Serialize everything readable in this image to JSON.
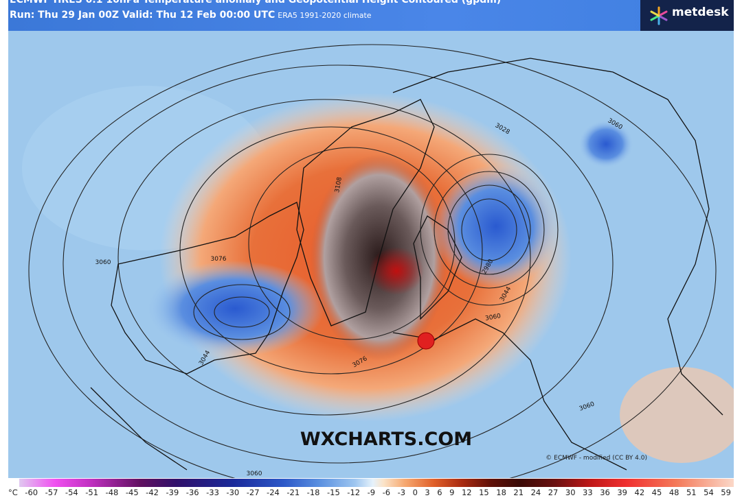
{
  "header": {
    "title": "ECMWF HRES 0.1 10hPa Temperature anomaly and Geopotential Height Contoured (gpdm)",
    "run": "Run: Thu 29 Jan 00Z Valid: Thu 12 Feb 00:00 UTC",
    "climate": "ERA5 1991-2020 climate",
    "logo": "metdesk"
  },
  "map": {
    "watermark": "WXCHARTS.COM",
    "credit": "© ECMWF - modified (CC BY 4.0)",
    "contour_labels": [
      "3028",
      "3060",
      "3108",
      "3076",
      "2980",
      "3044",
      "3060",
      "3076",
      "3044",
      "3060",
      "3060",
      "3060"
    ]
  },
  "colorbar": {
    "unit": "°C",
    "ticks": [
      -60,
      -57,
      -54,
      -51,
      -48,
      -45,
      -42,
      -39,
      -36,
      -33,
      -30,
      -27,
      -24,
      -21,
      -18,
      -15,
      -12,
      -9,
      -6,
      -3,
      0,
      3,
      6,
      9,
      12,
      15,
      18,
      21,
      24,
      27,
      30,
      33,
      36,
      39,
      42,
      45,
      48,
      51,
      54,
      59
    ]
  }
}
